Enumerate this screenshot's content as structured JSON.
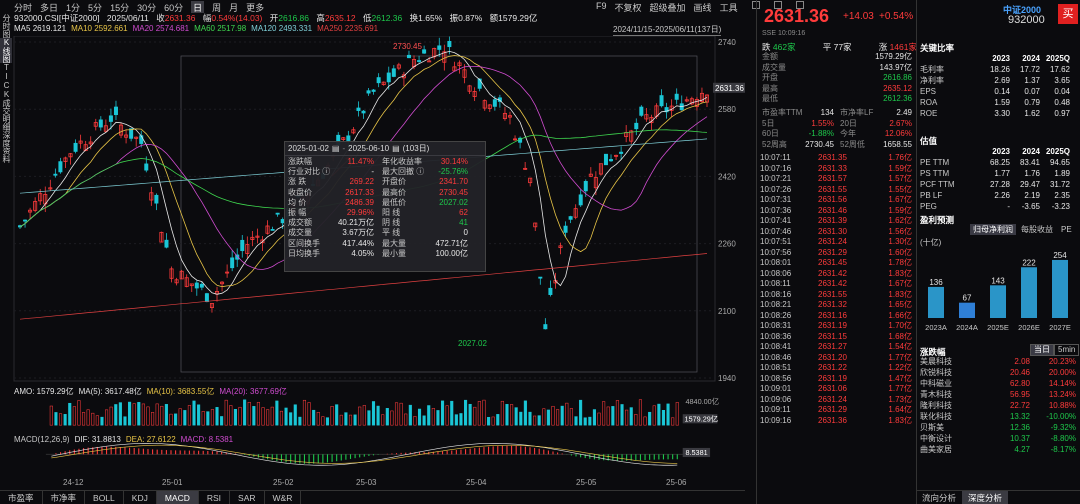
{
  "top_tabs": {
    "items": [
      "分时",
      "多日",
      "1分",
      "5分",
      "15分",
      "30分",
      "60分",
      "日",
      "周",
      "月",
      "更多"
    ],
    "active": 7
  },
  "top_right": {
    "items": [
      "F9",
      "不复权",
      "超级叠加",
      "画线",
      "工具"
    ]
  },
  "left_strip": [
    "分时图",
    "K线图",
    "TICK",
    "成交明细",
    "深度资料"
  ],
  "info": {
    "code": "932000.CSI[中证2000]",
    "date": "2025/06/11",
    "close_label": "收",
    "close": "2631.36",
    "chg_label": "幅",
    "chg": "0.54%(14.03)",
    "open_label": "开",
    "open": "2616.86",
    "high_label": "高",
    "high": "2635.12",
    "low_label": "低",
    "low": "2612.36",
    "turn_label": "换",
    "turn": "1.65%",
    "amp_label": "振",
    "amp": "0.87%",
    "amt_label": "额",
    "amt": "1579.29亿"
  },
  "ma_line": [
    {
      "label": "MA5",
      "value": "2619.121",
      "color": "#e8e8e8"
    },
    {
      "label": "MA10",
      "value": "2592.661",
      "color": "#e8c547"
    },
    {
      "label": "MA20",
      "value": "2574.681",
      "color": "#d04cd0"
    },
    {
      "label": "MA60",
      "value": "2517.98",
      "color": "#3fd64f"
    },
    {
      "label": "MA120",
      "value": "2493.331",
      "color": "#7fd0d8"
    },
    {
      "label": "MA250",
      "value": "2235.691",
      "color": "#e04040"
    }
  ],
  "date_range": "2024/11/15-2025/06/11(137日)",
  "y_ticks": [
    "2740",
    "2580",
    "2420",
    "2260",
    "2100",
    "1940"
  ],
  "peak_label": "2730.45",
  "trough_label": "2027.02",
  "current_price_tag": "2631.36",
  "popup": {
    "from": "2025-01-02",
    "to": "2025-06-10",
    "days": "(103日)",
    "rows": [
      [
        "涨跌幅",
        "11.47%",
        "年化收益率",
        "30.14%"
      ],
      [
        "行业对比 ⓘ",
        "-",
        "最大回撤 ⓘ",
        "-25.76%"
      ],
      [
        "涨 跌",
        "269.22",
        "开盘价",
        "2341.70"
      ],
      [
        "收盘价",
        "2617.33",
        "最高价",
        "2730.45"
      ],
      [
        "均 价",
        "2486.39",
        "最低价",
        "2027.02"
      ],
      [
        "振 幅",
        "29.96%",
        "阳 线",
        "62"
      ],
      [
        "成交额",
        "40.21万亿",
        "阴 线",
        "41"
      ],
      [
        "成交量",
        "3.67万亿",
        "平 线",
        "0"
      ],
      [
        "区间换手",
        "417.44%",
        "最大量",
        "472.71亿"
      ],
      [
        "日均换手",
        "4.05%",
        "最小量",
        "100.00亿"
      ]
    ]
  },
  "amo_line": [
    {
      "label": "AMO:",
      "value": "1579.29亿",
      "color": "#e6e6e6"
    },
    {
      "label": "MA(5):",
      "value": "3617.48亿",
      "color": "#e6e6e6"
    },
    {
      "label": "MA(10):",
      "value": "3683.55亿",
      "color": "#e8c547"
    },
    {
      "label": "MA(20):",
      "value": "3677.69亿",
      "color": "#d04cd0"
    }
  ],
  "amo_ticks": [
    "4840.00亿",
    "1579.29亿"
  ],
  "macd_line": [
    {
      "label": "MACD(12,26,9)",
      "value": "",
      "color": "#c9c9c9"
    },
    {
      "label": "DIF:",
      "value": "31.8813",
      "color": "#e6e6e6"
    },
    {
      "label": "DEA:",
      "value": "27.6122",
      "color": "#e8c547"
    },
    {
      "label": "MACD:",
      "value": "8.5381",
      "color": "#d04cd0"
    }
  ],
  "macd_tag": "8.5381",
  "x_ticks": [
    "24-12",
    "25-01",
    "25-02",
    "25-03",
    "25-04",
    "25-05",
    "25-06"
  ],
  "bottom_tabs": {
    "items": [
      "市盈率",
      "市净率",
      "BOLL",
      "KDJ",
      "MACD",
      "RSI",
      "SAR",
      "W&R"
    ],
    "active": 4
  },
  "quote": {
    "price": "2631.36",
    "chg": "+14.03",
    "pct": "+0.54%",
    "name": "中证2000",
    "code": "932000",
    "buy": "买",
    "exchange": "SSE",
    "time": "10:09:16"
  },
  "updown": {
    "down_label": "跌",
    "down": "462家",
    "flat_label": "平",
    "flat": "77家",
    "up_label": "涨",
    "up": "1461家"
  },
  "stats": [
    [
      "金额",
      "1579.29亿"
    ],
    [
      "成交量",
      "143.97亿"
    ],
    [
      "开盘",
      "2616.86"
    ],
    [
      "最高",
      "2635.12"
    ],
    [
      "最低",
      "2612.36"
    ]
  ],
  "pe_stats": [
    [
      "市盈率TTM",
      "134",
      "市净率LF",
      "2.49"
    ],
    [
      "5日",
      "1.55%",
      "20日",
      "2.67%"
    ],
    [
      "60日",
      "-1.88%",
      "今年",
      "12.06%"
    ],
    [
      "52周高",
      "2730.45",
      "52周低",
      "1658.55"
    ]
  ],
  "ticks": [
    [
      "10:07:11",
      "2631.35",
      "1.76亿"
    ],
    [
      "10:07:16",
      "2631.33",
      "1.59亿"
    ],
    [
      "10:07:21",
      "2631.57",
      "1.57亿"
    ],
    [
      "10:07:26",
      "2631.55",
      "1.55亿"
    ],
    [
      "10:07:31",
      "2631.56",
      "1.67亿"
    ],
    [
      "10:07:36",
      "2631.46",
      "1.59亿"
    ],
    [
      "10:07:41",
      "2631.39",
      "1.62亿"
    ],
    [
      "10:07:46",
      "2631.30",
      "1.56亿"
    ],
    [
      "10:07:51",
      "2631.24",
      "1.30亿"
    ],
    [
      "10:07:56",
      "2631.29",
      "1.60亿"
    ],
    [
      "10:08:01",
      "2631.45",
      "1.78亿"
    ],
    [
      "10:08:06",
      "2631.42",
      "1.83亿"
    ],
    [
      "10:08:11",
      "2631.42",
      "1.67亿"
    ],
    [
      "10:08:16",
      "2631.55",
      "1.83亿"
    ],
    [
      "10:08:21",
      "2631.32",
      "1.65亿"
    ],
    [
      "10:08:26",
      "2631.16",
      "1.66亿"
    ],
    [
      "10:08:31",
      "2631.19",
      "1.70亿"
    ],
    [
      "10:08:36",
      "2631.15",
      "1.68亿"
    ],
    [
      "10:08:41",
      "2631.27",
      "1.54亿"
    ],
    [
      "10:08:46",
      "2631.20",
      "1.77亿"
    ],
    [
      "10:08:51",
      "2631.22",
      "1.22亿"
    ],
    [
      "10:08:56",
      "2631.19",
      "1.47亿"
    ],
    [
      "10:09:01",
      "2631.06",
      "1.77亿"
    ],
    [
      "10:09:06",
      "2631.24",
      "1.73亿"
    ],
    [
      "10:09:11",
      "2631.29",
      "1.64亿"
    ],
    [
      "10:09:16",
      "2631.36",
      "1.83亿"
    ]
  ],
  "key_ratios": {
    "title": "关键比率",
    "years": [
      "2023",
      "2024",
      "2025Q"
    ],
    "rows": [
      [
        "毛利率",
        "18.26",
        "17.72",
        "17.62"
      ],
      [
        "净利率",
        "2.69",
        "1.37",
        "3.65"
      ],
      [
        "EPS",
        "0.14",
        "0.07",
        "0.04"
      ],
      [
        "ROA",
        "1.59",
        "0.79",
        "0.48"
      ],
      [
        "ROE",
        "3.30",
        "1.62",
        "0.97"
      ]
    ]
  },
  "valuation": {
    "title": "估值",
    "years": [
      "2023",
      "2024",
      "2025Q"
    ],
    "rows": [
      [
        "PE TTM",
        "68.25",
        "83.41",
        "94.65"
      ],
      [
        "PS TTM",
        "1.77",
        "1.76",
        "1.89"
      ],
      [
        "PCF TTM",
        "27.28",
        "29.47",
        "31.72"
      ],
      [
        "PB LF",
        "2.26",
        "2.19",
        "2.35"
      ],
      [
        "PEG",
        "-",
        "-3.65",
        "-3.23"
      ]
    ]
  },
  "forecast": {
    "title": "盈利预测",
    "unit": "(十亿)",
    "tabs": [
      "归母净利润",
      "每股收益",
      "PE"
    ],
    "active": 0,
    "categories": [
      "2023A",
      "2024A",
      "2025E",
      "2026E",
      "2027E"
    ],
    "values": [
      136,
      67,
      143,
      222,
      254
    ]
  },
  "sectors": {
    "title": "涨跌幅",
    "tabs": [
      "当日",
      "5min"
    ],
    "active": 0,
    "rows": [
      [
        "美晨科技",
        "2.08",
        "20.23%"
      ],
      [
        "欣锐科技",
        "20.46",
        "20.00%"
      ],
      [
        "中科磁业",
        "62.80",
        "14.14%"
      ],
      [
        "青木科技",
        "56.95",
        "13.24%"
      ],
      [
        "隆利科技",
        "22.72",
        "10.88%"
      ],
      [
        "联化科技",
        "13.32",
        "-10.00%"
      ],
      [
        "贝斯美",
        "12.36",
        "-9.32%"
      ],
      [
        "中衡设计",
        "10.37",
        "-8.80%"
      ],
      [
        "曲美家居",
        "4.27",
        "-8.17%"
      ]
    ]
  },
  "bottom_tabs2": {
    "items": [
      "流向分析",
      "深度分析"
    ],
    "active": 1
  },
  "colors": {
    "up": "#ff3b3b",
    "down": "#1ec84b",
    "bg": "#0b0b0e"
  }
}
